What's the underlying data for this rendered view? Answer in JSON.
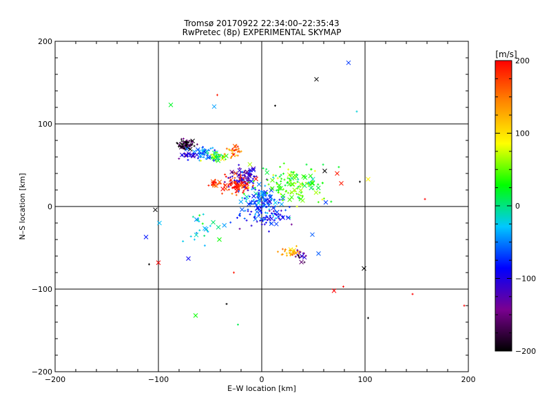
{
  "chart_data": {
    "type": "scatter",
    "title": "Tromsø 20170922 22:34:00–22:35:43",
    "subtitle": "RwPretec (8p) EXPERIMENTAL SKYMAP",
    "xlabel": "E–W location [km]",
    "ylabel": "N–S location [km]",
    "xlim": [
      -200,
      200
    ],
    "ylim": [
      -200,
      200
    ],
    "xticks": [
      -200,
      -100,
      0,
      100,
      200
    ],
    "yticks": [
      -200,
      -100,
      0,
      100,
      200
    ],
    "x_tick_labels": [
      "−200",
      "−100",
      "0",
      "100",
      "200"
    ],
    "y_tick_labels": [
      "−200",
      "−100",
      "0",
      "100",
      "200"
    ],
    "grid": true,
    "colorbar": {
      "label": "[m/s]",
      "min": -200,
      "max": 200,
      "ticks": [
        200,
        100,
        0,
        -100,
        -200
      ],
      "tick_labels": [
        "200",
        "100",
        "0",
        "−100",
        "−200"
      ],
      "colormap": [
        "#000000",
        "#7a0090",
        "#0000ff",
        "#00c8ff",
        "#00ff00",
        "#ffff00",
        "#ff8800",
        "#ff0000"
      ]
    },
    "clusters": [
      {
        "x": -73,
        "y": 75,
        "sx": 4,
        "sy": 3,
        "v": -190,
        "n": 70
      },
      {
        "x": -55,
        "y": 65,
        "sx": 5,
        "sy": 4,
        "v": -55,
        "n": 45
      },
      {
        "x": -42,
        "y": 60,
        "sx": 5,
        "sy": 3,
        "v": 45,
        "n": 40
      },
      {
        "x": -27,
        "y": 66,
        "sx": 4,
        "sy": 3,
        "v": 150,
        "n": 30
      },
      {
        "x": -18,
        "y": 35,
        "sx": 7,
        "sy": 6,
        "v": -120,
        "n": 90
      },
      {
        "x": -25,
        "y": 26,
        "sx": 8,
        "sy": 5,
        "v": 190,
        "n": 80
      },
      {
        "x": -45,
        "y": 28,
        "sx": 3,
        "sy": 2,
        "v": 190,
        "n": 20
      },
      {
        "x": 0,
        "y": 8,
        "sx": 10,
        "sy": 8,
        "v": -60,
        "n": 110
      },
      {
        "x": 30,
        "y": 25,
        "sx": 18,
        "sy": 12,
        "v": 40,
        "n": 130
      },
      {
        "x": 5,
        "y": -12,
        "sx": 12,
        "sy": 7,
        "v": -90,
        "n": 70
      },
      {
        "x": 28,
        "y": -55,
        "sx": 5,
        "sy": 3,
        "v": 130,
        "n": 30
      },
      {
        "x": 38,
        "y": -60,
        "sx": 3,
        "sy": 3,
        "v": -140,
        "n": 15
      },
      {
        "x": -70,
        "y": 62,
        "sx": 5,
        "sy": 3,
        "v": -95,
        "n": 25
      },
      {
        "x": -60,
        "y": -28,
        "sx": 7,
        "sy": 9,
        "v": -20,
        "n": 25
      }
    ],
    "points": [
      {
        "x": 84,
        "y": 174,
        "v": -70,
        "m": "x"
      },
      {
        "x": 53,
        "y": 154,
        "v": -200,
        "m": "x"
      },
      {
        "x": -88,
        "y": 123,
        "v": 20,
        "m": "x"
      },
      {
        "x": -46,
        "y": 121,
        "v": -40,
        "m": "x"
      },
      {
        "x": 92,
        "y": 115,
        "v": -20,
        "m": "+"
      },
      {
        "x": 13,
        "y": 122,
        "v": -200,
        "m": "+"
      },
      {
        "x": -43,
        "y": 135,
        "v": 190,
        "m": "+"
      },
      {
        "x": 103,
        "y": 33,
        "v": 90,
        "m": "x"
      },
      {
        "x": 61,
        "y": 43,
        "v": -200,
        "m": "x"
      },
      {
        "x": 95,
        "y": 30,
        "v": -200,
        "m": "+"
      },
      {
        "x": 158,
        "y": 9,
        "v": 200,
        "m": "+"
      },
      {
        "x": -103,
        "y": -4,
        "v": -200,
        "m": "x"
      },
      {
        "x": -99,
        "y": -20,
        "v": -30,
        "m": "x"
      },
      {
        "x": -112,
        "y": -37,
        "v": -80,
        "m": "x"
      },
      {
        "x": -100,
        "y": -68,
        "v": 200,
        "m": "x"
      },
      {
        "x": -109,
        "y": -70,
        "v": -200,
        "m": "+"
      },
      {
        "x": -71,
        "y": -63,
        "v": -90,
        "m": "x"
      },
      {
        "x": -64,
        "y": -132,
        "v": 30,
        "m": "x"
      },
      {
        "x": -34,
        "y": -118,
        "v": -200,
        "m": "+"
      },
      {
        "x": -23,
        "y": -143,
        "v": 10,
        "m": "+"
      },
      {
        "x": 99,
        "y": -75,
        "v": -200,
        "m": "x"
      },
      {
        "x": 70,
        "y": -102,
        "v": 200,
        "m": "x"
      },
      {
        "x": 79,
        "y": -97,
        "v": 200,
        "m": "+"
      },
      {
        "x": 103,
        "y": -135,
        "v": -200,
        "m": "+"
      },
      {
        "x": 146,
        "y": -106,
        "v": 200,
        "m": "+"
      },
      {
        "x": 196,
        "y": -120,
        "v": 200,
        "m": "+"
      },
      {
        "x": 55,
        "y": -57,
        "v": -60,
        "m": "x"
      },
      {
        "x": 49,
        "y": -34,
        "v": -60,
        "m": "x"
      },
      {
        "x": 73,
        "y": 40,
        "v": 190,
        "m": "x"
      },
      {
        "x": 77,
        "y": 28,
        "v": 190,
        "m": "x"
      },
      {
        "x": 62,
        "y": 5,
        "v": -70,
        "m": "x"
      },
      {
        "x": -41,
        "y": -40,
        "v": 30,
        "m": "x"
      },
      {
        "x": -27,
        "y": -80,
        "v": 190,
        "m": "+"
      }
    ]
  }
}
